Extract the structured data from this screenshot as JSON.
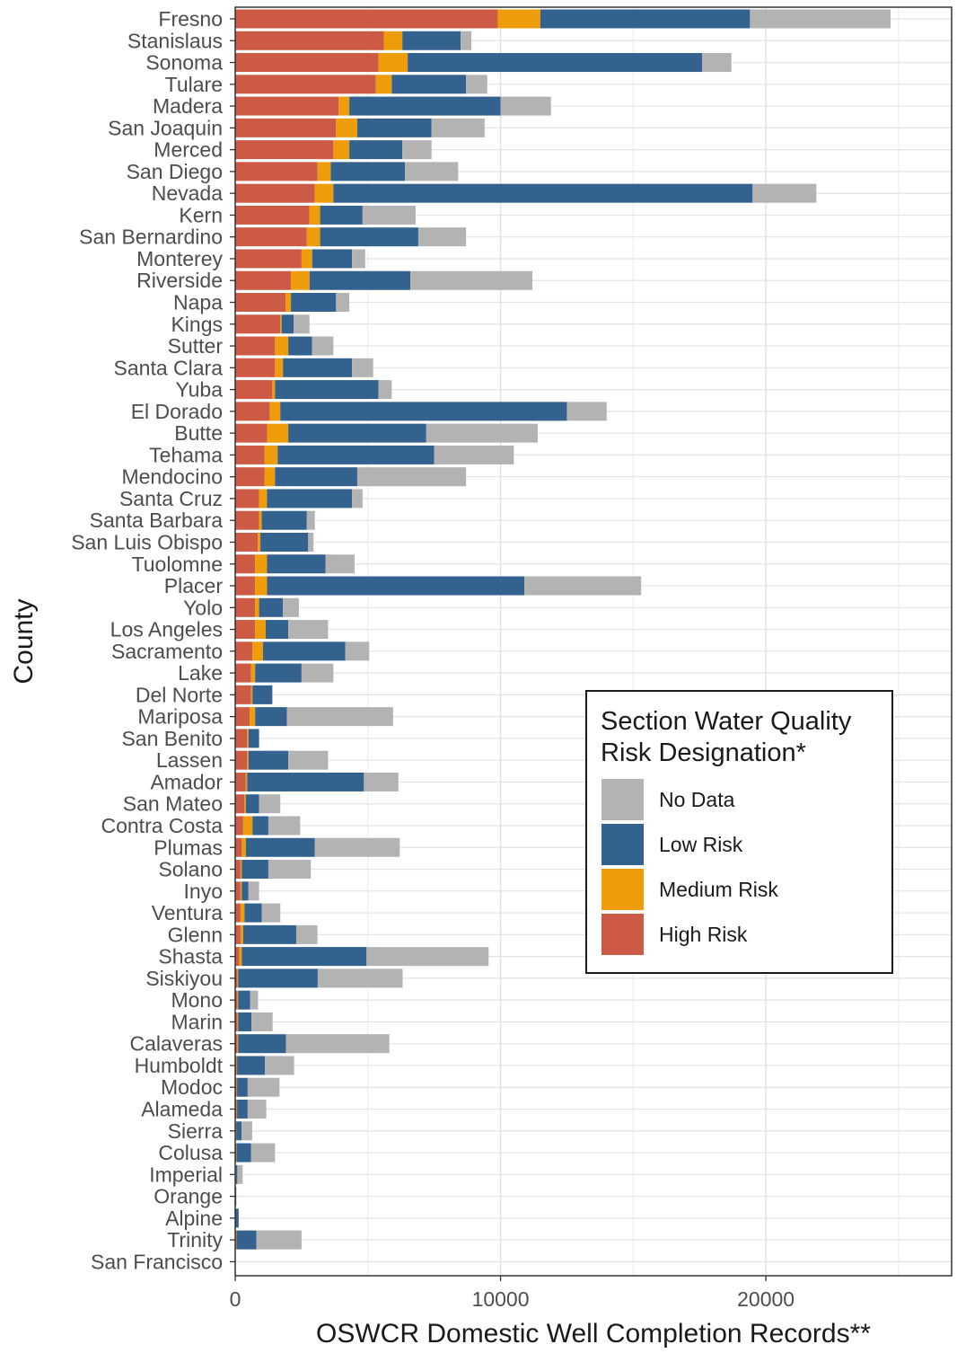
{
  "chart_data": {
    "type": "bar",
    "orientation": "horizontal",
    "stacked": true,
    "title": "",
    "xlabel": "OSWCR Domestic Well Completion Records**",
    "ylabel": "County",
    "xlim": [
      0,
      27000
    ],
    "xticks": [
      0,
      10000,
      20000
    ],
    "xtick_labels": [
      "0",
      "10000",
      "20000"
    ],
    "grid": true,
    "legend": {
      "title_lines": [
        "Section Water Quality",
        "Risk Designation*"
      ],
      "position": "right-middle",
      "entries": [
        "No Data",
        "Low Risk",
        "Medium Risk",
        "High Risk"
      ]
    },
    "categories": [
      "Fresno",
      "Stanislaus",
      "Sonoma",
      "Tulare",
      "Madera",
      "San Joaquin",
      "Merced",
      "San Diego",
      "Nevada",
      "Kern",
      "San Bernardino",
      "Monterey",
      "Riverside",
      "Napa",
      "Kings",
      "Sutter",
      "Santa Clara",
      "Yuba",
      "El Dorado",
      "Butte",
      "Tehama",
      "Mendocino",
      "Santa Cruz",
      "Santa Barbara",
      "San Luis Obispo",
      "Tuolomne",
      "Placer",
      "Yolo",
      "Los Angeles",
      "Sacramento",
      "Lake",
      "Del Norte",
      "Mariposa",
      "San Benito",
      "Lassen",
      "Amador",
      "San Mateo",
      "Contra Costa",
      "Plumas",
      "Solano",
      "Inyo",
      "Ventura",
      "Glenn",
      "Shasta",
      "Siskiyou",
      "Mono",
      "Marin",
      "Calaveras",
      "Humboldt",
      "Modoc",
      "Alameda",
      "Sierra",
      "Colusa",
      "Imperial",
      "Orange",
      "Alpine",
      "Trinity",
      "San Francisco"
    ],
    "series": [
      {
        "name": "High Risk",
        "color": "#cd5a45",
        "values": [
          9900,
          5600,
          5400,
          5300,
          3900,
          3800,
          3700,
          3100,
          3000,
          2800,
          2700,
          2500,
          2100,
          1900,
          1700,
          1500,
          1500,
          1400,
          1300,
          1200,
          1100,
          1100,
          900,
          900,
          850,
          750,
          750,
          750,
          750,
          650,
          600,
          600,
          550,
          450,
          450,
          400,
          350,
          300,
          250,
          200,
          200,
          200,
          200,
          150,
          80,
          80,
          80,
          80,
          50,
          50,
          50,
          30,
          40,
          20,
          10,
          10,
          30,
          0
        ]
      },
      {
        "name": "Medium Risk",
        "color": "#ee9c0a",
        "values": [
          1600,
          700,
          1100,
          600,
          400,
          800,
          600,
          500,
          700,
          400,
          500,
          400,
          700,
          200,
          50,
          500,
          300,
          100,
          400,
          800,
          500,
          400,
          300,
          100,
          100,
          450,
          450,
          150,
          400,
          400,
          150,
          50,
          200,
          50,
          50,
          50,
          50,
          350,
          150,
          50,
          50,
          150,
          100,
          100,
          30,
          30,
          30,
          30,
          20,
          20,
          20,
          10,
          10,
          10,
          0,
          0,
          20,
          0
        ]
      },
      {
        "name": "Low Risk",
        "color": "#33628f",
        "values": [
          7900,
          2200,
          11100,
          2800,
          5700,
          2800,
          2000,
          2800,
          15800,
          1600,
          3700,
          1500,
          3800,
          1700,
          450,
          900,
          2600,
          3900,
          10800,
          5200,
          5900,
          3100,
          3200,
          1700,
          1800,
          2200,
          9700,
          900,
          850,
          3100,
          1750,
          750,
          1200,
          400,
          1500,
          4400,
          500,
          600,
          2600,
          1000,
          250,
          650,
          2000,
          4700,
          3000,
          450,
          500,
          1800,
          1050,
          400,
          400,
          200,
          550,
          50,
          30,
          120,
          750,
          0
        ]
      },
      {
        "name": "No Data",
        "color": "#b3b3b3",
        "values": [
          5300,
          400,
          1100,
          800,
          1900,
          2000,
          1100,
          2000,
          2400,
          2000,
          1800,
          500,
          4600,
          500,
          600,
          800,
          800,
          500,
          1500,
          4200,
          3000,
          4100,
          400,
          300,
          200,
          1100,
          4400,
          600,
          1500,
          900,
          1200,
          0,
          4000,
          0,
          1500,
          1300,
          800,
          1200,
          3200,
          1600,
          400,
          700,
          800,
          4600,
          3200,
          300,
          800,
          3900,
          1100,
          1200,
          700,
          400,
          900,
          200,
          0,
          0,
          1700,
          0
        ]
      }
    ]
  }
}
